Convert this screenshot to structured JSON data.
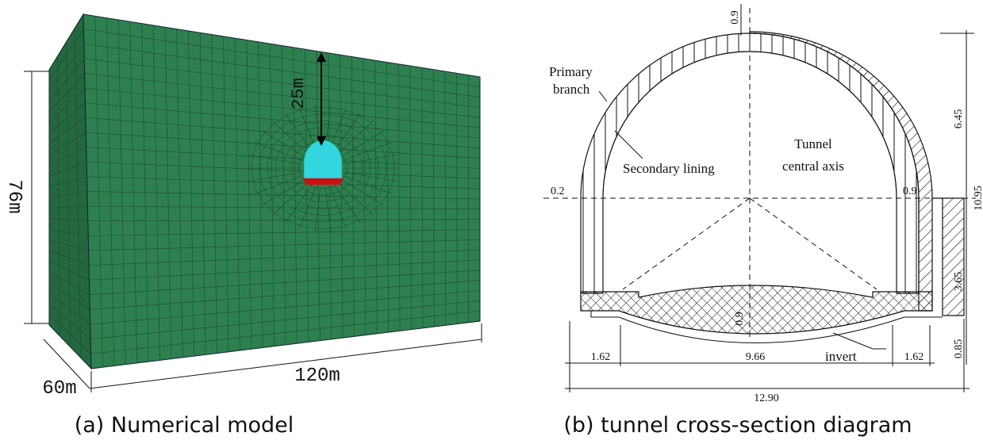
{
  "panel_a": {
    "caption": "(a) Numerical model",
    "depth_label": "25m",
    "height_label": "76m",
    "width_label": "60m",
    "length_label": "120m"
  },
  "panel_b": {
    "caption": "(b) tunnel cross-section diagram",
    "labels": {
      "primary_branch": [
        "Primary",
        "branch"
      ],
      "secondary_lining": "Secondary lining",
      "tunnel_axis": [
        "Tunnel",
        "central axis"
      ],
      "invert": "invert"
    },
    "dimensions": {
      "top_thickness": "0.9",
      "upper_height": "6.45",
      "total_height": "10.95",
      "left_thickness": "0.2",
      "right_thickness": "0.9",
      "lower_height": "3.65",
      "invert_thickness": "0.9",
      "invert_depth": "0.85",
      "left_width": "1.62",
      "middle_width": "9.66",
      "right_width": "1.62",
      "total_width": "12.90"
    }
  }
}
